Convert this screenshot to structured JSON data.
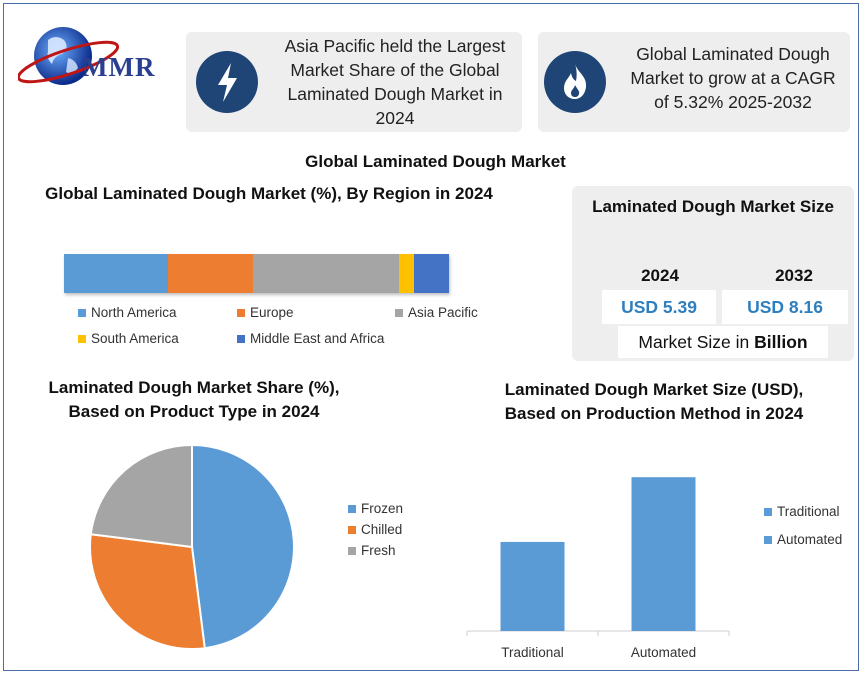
{
  "logo": {
    "text": "MMR"
  },
  "highlights": [
    {
      "icon": "lightning-bolt-icon",
      "text": "Asia Pacific held the Largest Market Share of the Global Laminated Dough Market in 2024"
    },
    {
      "icon": "flame-icon",
      "text": "Global Laminated Dough Market to grow at a CAGR of 5.32% 2025-2032"
    }
  ],
  "main_title": "Global Laminated Dough Market",
  "market_size": {
    "title": "Laminated Dough Market Size",
    "year_a": "2024",
    "value_a": "USD 5.39",
    "year_b": "2032",
    "value_b": "USD 8.16",
    "unit_prefix": "Market Size in ",
    "unit_bold": "Billion"
  },
  "colors": {
    "frame": "#4a6ea8",
    "blue": "#5b9bd5",
    "orange": "#ed7d31",
    "gray": "#a5a5a5",
    "yellow": "#ffc000",
    "dark_blue": "#4472c4",
    "value_text": "#2e7fbf",
    "icon_circle": "#1f4476"
  },
  "chart_data": [
    {
      "type": "bar",
      "orientation": "horizontal-stacked",
      "title": "Global Laminated Dough Market (%), By Region in 2024",
      "categories": [
        "North America",
        "Europe",
        "Asia Pacific",
        "South America",
        "Middle East and Africa"
      ],
      "values": [
        27,
        22,
        38,
        4,
        9
      ],
      "colors": [
        "#5b9bd5",
        "#ed7d31",
        "#a5a5a5",
        "#ffc000",
        "#4472c4"
      ],
      "legend": "bottom"
    },
    {
      "type": "pie",
      "title": "Laminated Dough Market Share (%), Based on Product Type in 2024",
      "categories": [
        "Frozen",
        "Chilled",
        "Fresh"
      ],
      "values": [
        48,
        29,
        23
      ],
      "colors": [
        "#5b9bd5",
        "#ed7d31",
        "#a5a5a5"
      ],
      "legend": "right"
    },
    {
      "type": "bar",
      "title": "Laminated Dough Market Size (USD), Based on Production Method in 2024",
      "categories": [
        "Traditional",
        "Automated"
      ],
      "values": [
        2.2,
        3.8
      ],
      "ylim": [
        0,
        4.2
      ],
      "colors": [
        "#5b9bd5",
        "#5b9bd5"
      ],
      "legend": "right"
    }
  ]
}
